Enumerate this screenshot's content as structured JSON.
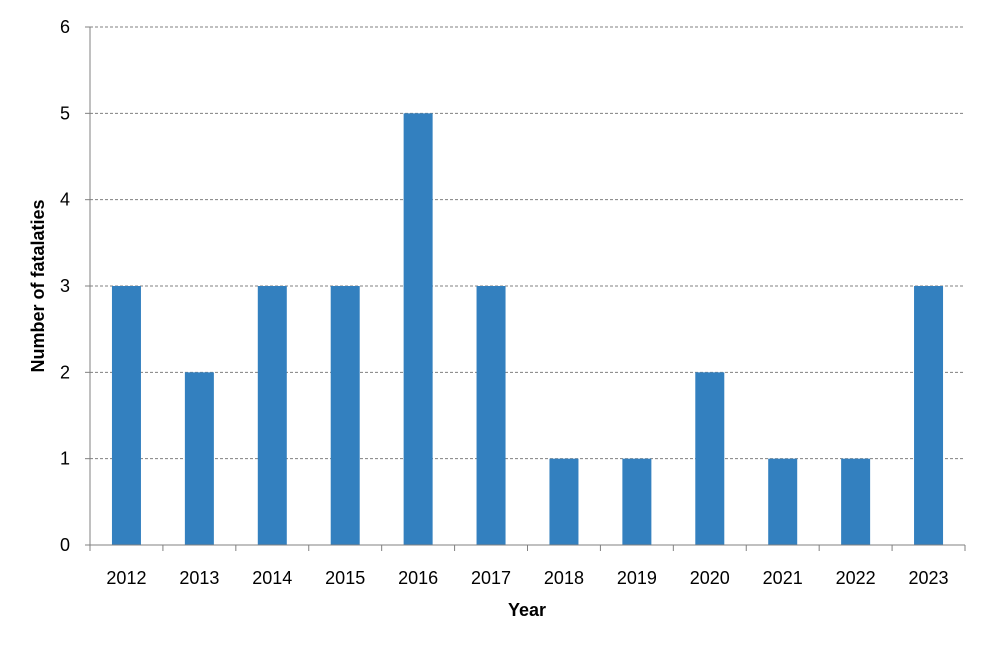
{
  "chart_data": {
    "type": "bar",
    "categories": [
      "2012",
      "2013",
      "2014",
      "2015",
      "2016",
      "2017",
      "2018",
      "2019",
      "2020",
      "2021",
      "2022",
      "2023"
    ],
    "values": [
      3,
      2,
      3,
      3,
      5,
      3,
      1,
      1,
      2,
      1,
      1,
      3
    ],
    "xlabel": "Year",
    "ylabel": "Number of fatalaties",
    "ylim": [
      0,
      6
    ],
    "yticks": [
      "0",
      "1",
      "2",
      "3",
      "4",
      "5",
      "6"
    ],
    "grid": true,
    "legend": "none",
    "bar_color": "#3380bf"
  }
}
